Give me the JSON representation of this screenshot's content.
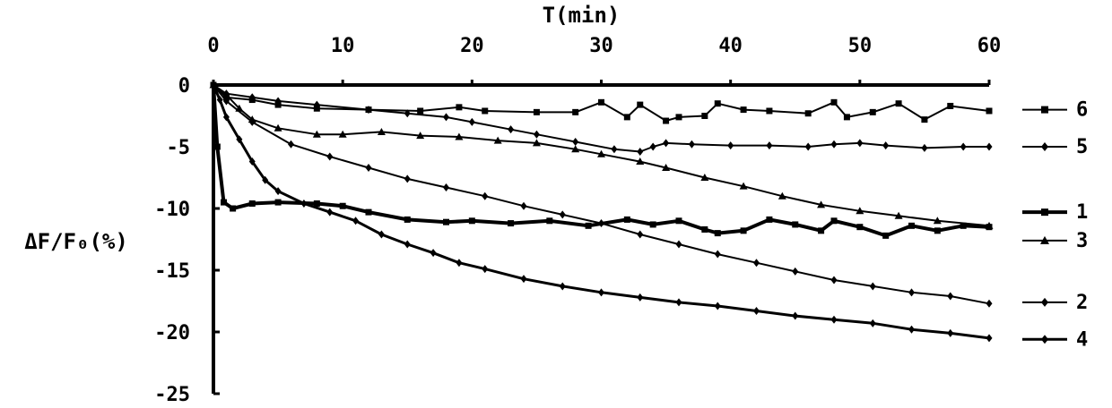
{
  "chart_data": {
    "type": "line",
    "title": "",
    "xlabel": "T(min)",
    "ylabel": "ΔF/F₀(%)",
    "xlim": [
      0,
      60
    ],
    "ylim": [
      -25,
      0
    ],
    "x_axis_position": "top",
    "x_ticks": [
      "0",
      "10",
      "20",
      "30",
      "40",
      "50",
      "60"
    ],
    "y_ticks": [
      "0",
      "-5",
      "-10",
      "-15",
      "-20",
      "-25"
    ],
    "grid": false,
    "legend_placement": "right",
    "series": [
      {
        "name": "6",
        "marker": "square",
        "line_width": 2,
        "x": [
          0,
          1,
          3,
          5,
          8,
          12,
          16,
          19,
          21,
          25,
          28,
          30,
          32,
          33,
          35,
          36,
          38,
          39,
          41,
          43,
          46,
          48,
          49,
          51,
          53,
          55,
          57,
          60
        ],
        "y": [
          0,
          -1,
          -1.2,
          -1.6,
          -1.9,
          -2,
          -2.1,
          -1.8,
          -2.1,
          -2.2,
          -2.2,
          -1.4,
          -2.6,
          -1.6,
          -2.9,
          -2.6,
          -2.5,
          -1.5,
          -2.0,
          -2.1,
          -2.3,
          -1.4,
          -2.6,
          -2.2,
          -1.5,
          -2.8,
          -1.7,
          -2.1
        ]
      },
      {
        "name": "5",
        "marker": "diamond",
        "line_width": 2,
        "x": [
          0,
          1,
          3,
          5,
          8,
          12,
          15,
          18,
          20,
          23,
          25,
          28,
          31,
          33,
          34,
          35,
          37,
          40,
          43,
          46,
          48,
          50,
          52,
          55,
          58,
          60
        ],
        "y": [
          0,
          -0.7,
          -1.0,
          -1.3,
          -1.6,
          -2.0,
          -2.3,
          -2.6,
          -3.0,
          -3.6,
          -4.0,
          -4.6,
          -5.2,
          -5.4,
          -5.0,
          -4.7,
          -4.8,
          -4.9,
          -4.9,
          -5.0,
          -4.8,
          -4.7,
          -4.9,
          -5.1,
          -5.0,
          -5.0
        ]
      },
      {
        "name": "1",
        "marker": "square",
        "line_width": 4,
        "x": [
          0,
          0.3,
          0.8,
          1.5,
          3,
          5,
          8,
          10,
          12,
          15,
          18,
          20,
          23,
          26,
          29,
          32,
          34,
          36,
          38,
          39,
          41,
          43,
          45,
          47,
          48,
          50,
          52,
          54,
          56,
          58,
          60
        ],
        "y": [
          0,
          -5,
          -9.5,
          -10,
          -9.6,
          -9.5,
          -9.6,
          -9.8,
          -10.3,
          -10.9,
          -11.1,
          -11.0,
          -11.2,
          -11.0,
          -11.4,
          -10.9,
          -11.3,
          -11.0,
          -11.7,
          -12.0,
          -11.8,
          -10.9,
          -11.3,
          -11.8,
          -11.0,
          -11.5,
          -12.2,
          -11.4,
          -11.8,
          -11.4,
          -11.5
        ]
      },
      {
        "name": "3",
        "marker": "triangle",
        "line_width": 2,
        "x": [
          0,
          1,
          2,
          3,
          5,
          8,
          10,
          13,
          16,
          19,
          22,
          25,
          28,
          30,
          33,
          35,
          38,
          41,
          44,
          47,
          50,
          53,
          56,
          60
        ],
        "y": [
          0,
          -0.8,
          -1.9,
          -2.8,
          -3.5,
          -4.0,
          -4.0,
          -3.8,
          -4.1,
          -4.2,
          -4.5,
          -4.7,
          -5.2,
          -5.6,
          -6.2,
          -6.7,
          -7.5,
          -8.2,
          -9.0,
          -9.7,
          -10.2,
          -10.6,
          -11.0,
          -11.4
        ]
      },
      {
        "name": "2",
        "marker": "diamond",
        "line_width": 2,
        "x": [
          0,
          1,
          3,
          6,
          9,
          12,
          15,
          18,
          21,
          24,
          27,
          30,
          33,
          36,
          39,
          42,
          45,
          48,
          51,
          54,
          57,
          60
        ],
        "y": [
          0,
          -1.3,
          -3.0,
          -4.8,
          -5.8,
          -6.7,
          -7.6,
          -8.3,
          -9.0,
          -9.8,
          -10.5,
          -11.2,
          -12.1,
          -12.9,
          -13.7,
          -14.4,
          -15.1,
          -15.8,
          -16.3,
          -16.8,
          -17.1,
          -17.7
        ]
      },
      {
        "name": "4",
        "marker": "diamond",
        "line_width": 3,
        "x": [
          0,
          0.5,
          1,
          2,
          3,
          4,
          5,
          7,
          9,
          11,
          13,
          15,
          17,
          19,
          21,
          24,
          27,
          30,
          33,
          36,
          39,
          42,
          45,
          48,
          51,
          54,
          57,
          60
        ],
        "y": [
          0,
          -1.2,
          -2.6,
          -4.4,
          -6.2,
          -7.7,
          -8.6,
          -9.6,
          -10.3,
          -11.0,
          -12.1,
          -12.9,
          -13.6,
          -14.4,
          -14.9,
          -15.7,
          -16.3,
          -16.8,
          -17.2,
          -17.6,
          -17.9,
          -18.3,
          -18.7,
          -19.0,
          -19.3,
          -19.8,
          -20.1,
          -20.5
        ]
      }
    ]
  }
}
